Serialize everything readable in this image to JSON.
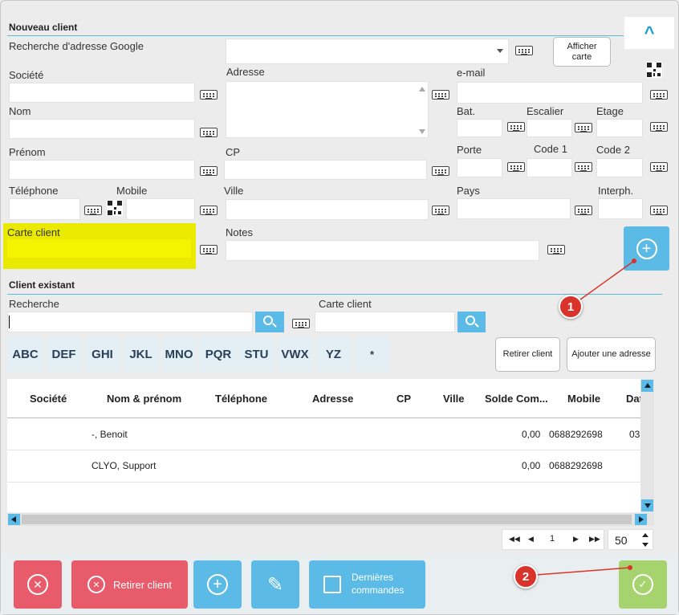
{
  "nouveau": {
    "title": "Nouveau client",
    "collapse_icon": "^",
    "google_label": "Recherche d'adresse Google",
    "afficher_carte": "Afficher carte",
    "societe": "Société",
    "nom": "Nom",
    "prenom": "Prénom",
    "telephone": "Téléphone",
    "mobile": "Mobile",
    "carte_client": "Carte client",
    "adresse": "Adresse",
    "cp": "CP",
    "ville": "Ville",
    "notes": "Notes",
    "email": "e-mail",
    "bat": "Bat.",
    "escalier": "Escalier",
    "etage": "Etage",
    "porte": "Porte",
    "code1": "Code 1",
    "code2": "Code 2",
    "pays": "Pays",
    "interph": "Interph.",
    "carte_color": "#eaea00"
  },
  "existant": {
    "title": "Client existant",
    "recherche": "Recherche",
    "carte_client": "Carte client",
    "alpha": [
      "ABC",
      "DEF",
      "GHI",
      "JKL",
      "MNO",
      "PQR",
      "STU",
      "VWX",
      "YZ",
      "*"
    ],
    "retirer": "Retirer client",
    "ajouter_adresse": "Ajouter une adresse",
    "columns": [
      "Société",
      "Nom & prénom",
      "Téléphone",
      "Adresse",
      "CP",
      "Ville",
      "Solde Com...",
      "Mobile",
      "Dat"
    ],
    "rows": [
      {
        "nom": "-, Benoit",
        "solde": "0,00",
        "mobile": "0688292698",
        "date": "03"
      },
      {
        "nom": "CLYO, Support",
        "solde": "0,00",
        "mobile": "0688292698",
        "date": ""
      }
    ],
    "page": "1",
    "per_page": "50"
  },
  "footer": {
    "retirer_label": "Retirer client",
    "dernieres_line1": "Dernières",
    "dernieres_line2": "commandes",
    "red": "#e85b6a",
    "blue": "#5bbbe6",
    "green": "#a6d36e"
  },
  "annotations": {
    "one": "1",
    "two": "2"
  }
}
